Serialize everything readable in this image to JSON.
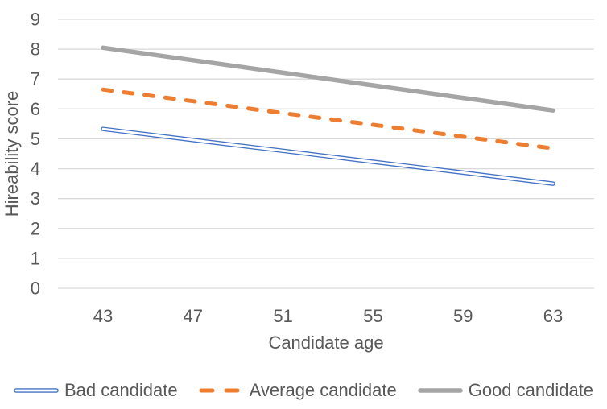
{
  "chart_data": {
    "type": "line",
    "title": "",
    "xlabel": "Candidate age",
    "ylabel": "Hireability score",
    "categories": [
      "43",
      "47",
      "51",
      "55",
      "59",
      "63"
    ],
    "y_ticks": [
      0,
      1,
      2,
      3,
      4,
      5,
      6,
      7,
      8,
      9
    ],
    "ylim": [
      0,
      9
    ],
    "grid": "horizontal-only",
    "legend_position": "bottom",
    "axis_text_color": "#595959",
    "gridline_color": "#d9d9d9",
    "plot_background": "#ffffff",
    "series": [
      {
        "name": "Bad candidate",
        "color": "#4472C4",
        "style": "double-line",
        "values": [
          5.33,
          4.96,
          4.6,
          4.23,
          3.87,
          3.5
        ]
      },
      {
        "name": "Average candidate",
        "color": "#ED7D31",
        "style": "dashed",
        "values": [
          6.65,
          6.26,
          5.86,
          5.47,
          5.07,
          4.68
        ]
      },
      {
        "name": "Good candidate",
        "color": "#A5A5A5",
        "style": "solid-thick",
        "values": [
          8.05,
          7.63,
          7.21,
          6.79,
          6.37,
          5.95
        ]
      }
    ]
  }
}
